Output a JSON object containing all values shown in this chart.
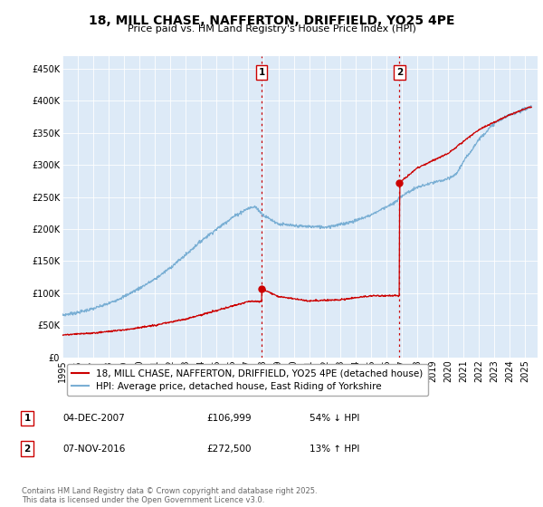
{
  "title": "18, MILL CHASE, NAFFERTON, DRIFFIELD, YO25 4PE",
  "subtitle": "Price paid vs. HM Land Registry's House Price Index (HPI)",
  "ylim": [
    0,
    470000
  ],
  "yticks": [
    0,
    50000,
    100000,
    150000,
    200000,
    250000,
    300000,
    350000,
    400000,
    450000
  ],
  "ytick_labels": [
    "£0",
    "£50K",
    "£100K",
    "£150K",
    "£200K",
    "£250K",
    "£300K",
    "£350K",
    "£400K",
    "£450K"
  ],
  "xlim_start": 1995.0,
  "xlim_end": 2025.8,
  "bg_color": "#ddeaf7",
  "red_color": "#cc0000",
  "blue_color": "#7aafd4",
  "transaction1_date": 2007.92,
  "transaction1_price": 106999,
  "transaction2_date": 2016.85,
  "transaction2_price": 272500,
  "legend_line1": "18, MILL CHASE, NAFFERTON, DRIFFIELD, YO25 4PE (detached house)",
  "legend_line2": "HPI: Average price, detached house, East Riding of Yorkshire",
  "table_row1": [
    "1",
    "04-DEC-2007",
    "£106,999",
    "54% ↓ HPI"
  ],
  "table_row2": [
    "2",
    "07-NOV-2016",
    "£272,500",
    "13% ↑ HPI"
  ],
  "footer": "Contains HM Land Registry data © Crown copyright and database right 2025.\nThis data is licensed under the Open Government Licence v3.0.",
  "title_fontsize": 10,
  "subtitle_fontsize": 8,
  "tick_fontsize": 7,
  "legend_fontsize": 7.5
}
